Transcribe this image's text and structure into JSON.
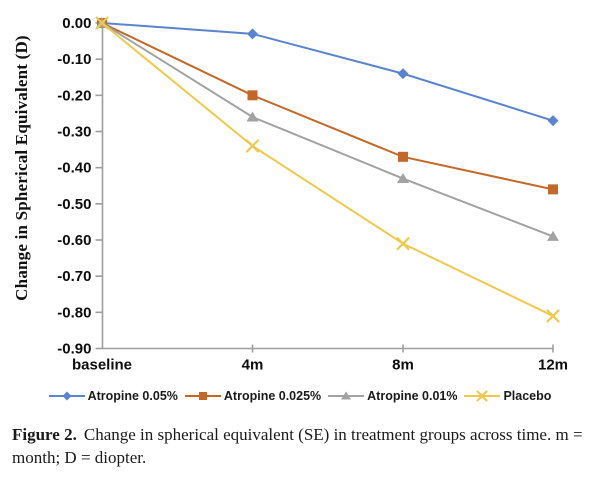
{
  "figure": {
    "caption_label": "Figure 2.",
    "caption_text": "Change in spherical equivalent (SE) in treatment groups across time. m = month; D = diopter."
  },
  "chart_data": {
    "type": "line",
    "title": "",
    "xlabel": "",
    "ylabel": "Change in Spherical Equivalent (D)",
    "categories": [
      "baseline",
      "4m",
      "8m",
      "12m"
    ],
    "series": [
      {
        "name": "Atropine 0.05%",
        "marker": "diamond",
        "color": "#5B84CE",
        "values": [
          0.0,
          -0.03,
          -0.14,
          -0.27
        ]
      },
      {
        "name": "Atropine 0.025%",
        "marker": "square",
        "color": "#C4682A",
        "values": [
          0.0,
          -0.2,
          -0.37,
          -0.46
        ]
      },
      {
        "name": "Atropine 0.01%",
        "marker": "triangle",
        "color": "#A2A2A2",
        "values": [
          0.0,
          -0.26,
          -0.43,
          -0.59
        ]
      },
      {
        "name": "Placebo",
        "marker": "x",
        "color": "#EFC94C",
        "values": [
          0.0,
          -0.34,
          -0.61,
          -0.81
        ]
      }
    ],
    "ylim": [
      -0.9,
      0.0
    ],
    "y_tick_labels": [
      "0.00",
      "-0.10",
      "-0.20",
      "-0.30",
      "-0.40",
      "-0.50",
      "-0.60",
      "-0.70",
      "-0.80",
      "-0.90"
    ],
    "grid": false,
    "legend_position": "bottom",
    "axis_color": "#9E9E9E"
  }
}
